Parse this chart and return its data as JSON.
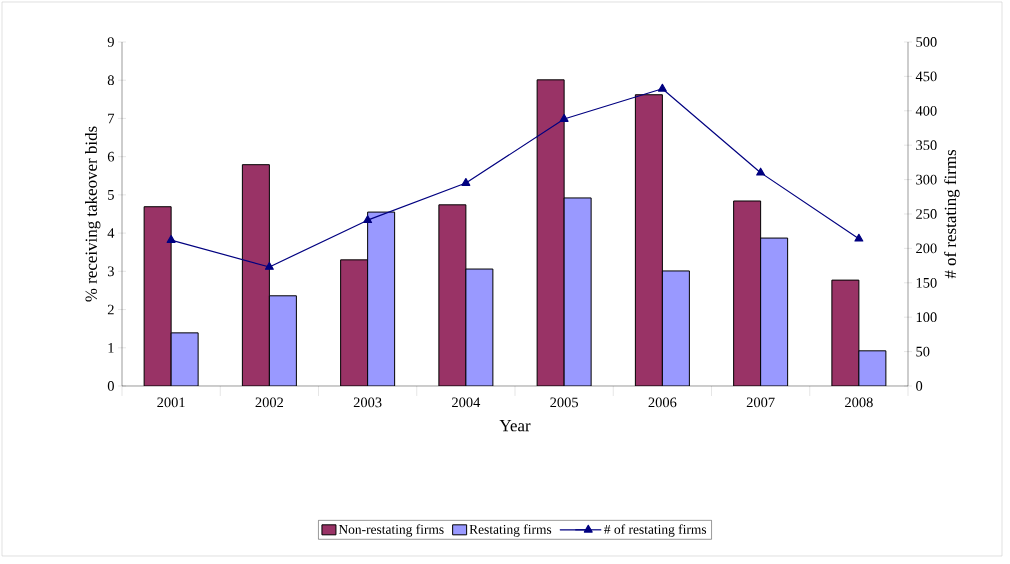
{
  "chart_data": {
    "type": "bar",
    "xlabel": "Year",
    "ylabel": "% receiving takeover bids",
    "y2label": "# of restating firms",
    "categories": [
      "2001",
      "2002",
      "2003",
      "2004",
      "2005",
      "2006",
      "2007",
      "2008"
    ],
    "series": [
      {
        "name": "Non-restating firms",
        "color": "#993366",
        "values": [
          4.69,
          5.79,
          3.3,
          4.74,
          8.01,
          7.62,
          4.84,
          2.77
        ]
      },
      {
        "name": "Restating firms",
        "color": "#9999ff",
        "values": [
          1.39,
          2.36,
          4.55,
          3.06,
          4.92,
          3.01,
          3.87,
          0.92
        ]
      },
      {
        "name": "# of restating firms",
        "type": "line",
        "axis": "y2",
        "marker": "triangle",
        "color": "#000080",
        "values": [
          212,
          173,
          241,
          295,
          388,
          432,
          310,
          214
        ]
      }
    ],
    "ylim": [
      0,
      9
    ],
    "yticks": [
      0,
      1,
      2,
      3,
      4,
      5,
      6,
      7,
      8,
      9
    ],
    "y2lim": [
      0,
      500
    ],
    "y2ticks": [
      0,
      50,
      100,
      150,
      200,
      250,
      300,
      350,
      400,
      450,
      500
    ],
    "legend": "bottom"
  }
}
